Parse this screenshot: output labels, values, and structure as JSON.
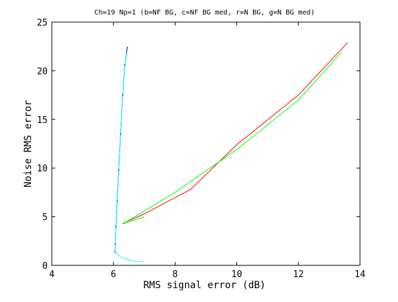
{
  "chart_data": {
    "type": "line",
    "title": "Ch=19 Np=1 (b=NF BG, c=NF BG med, r=N BG, g=N BG med)",
    "xlabel": "RMS signal error (dB)",
    "ylabel": "Noise RMS error",
    "xlim": [
      4,
      14
    ],
    "ylim": [
      0,
      25
    ],
    "xticks": [
      4,
      6,
      8,
      10,
      12,
      14
    ],
    "yticks": [
      0,
      5,
      10,
      15,
      20,
      25
    ],
    "xtick_labels": [
      "4",
      "6",
      "8",
      "10",
      "12",
      "14"
    ],
    "ytick_labels": [
      "0",
      "5",
      "10",
      "15",
      "20",
      "25"
    ],
    "grid": false,
    "series": [
      {
        "color": "#0000ff",
        "points": [
          [
            6.05,
            1.4
          ],
          [
            6.06,
            2.2
          ],
          [
            6.08,
            4.0
          ],
          [
            6.12,
            6.6
          ],
          [
            6.17,
            9.8
          ],
          [
            6.23,
            13.5
          ],
          [
            6.3,
            17.5
          ],
          [
            6.37,
            20.6
          ],
          [
            6.45,
            22.4
          ]
        ]
      },
      {
        "color": "#00ffff",
        "points": [
          [
            6.95,
            0.35
          ],
          [
            6.7,
            0.42
          ],
          [
            6.45,
            0.6
          ],
          [
            6.25,
            0.85
          ],
          [
            6.1,
            1.15
          ],
          [
            6.05,
            1.4
          ],
          [
            6.06,
            2.2
          ],
          [
            6.08,
            4.0
          ],
          [
            6.12,
            6.6
          ],
          [
            6.17,
            9.8
          ],
          [
            6.23,
            13.5
          ],
          [
            6.3,
            17.5
          ],
          [
            6.37,
            20.6
          ],
          [
            6.43,
            21.8
          ]
        ]
      },
      {
        "color": "#ff0000",
        "points": [
          [
            6.3,
            4.3
          ],
          [
            7.0,
            5.3
          ],
          [
            8.5,
            7.8
          ],
          [
            10.0,
            12.4
          ],
          [
            12.0,
            17.5
          ],
          [
            13.6,
            22.9
          ]
        ]
      },
      {
        "color": "#00ff00",
        "points": [
          [
            7.0,
            5.0
          ],
          [
            6.3,
            4.25
          ],
          [
            8.0,
            7.5
          ],
          [
            10.0,
            11.9
          ],
          [
            12.0,
            17.0
          ],
          [
            13.4,
            21.9
          ]
        ]
      }
    ]
  }
}
